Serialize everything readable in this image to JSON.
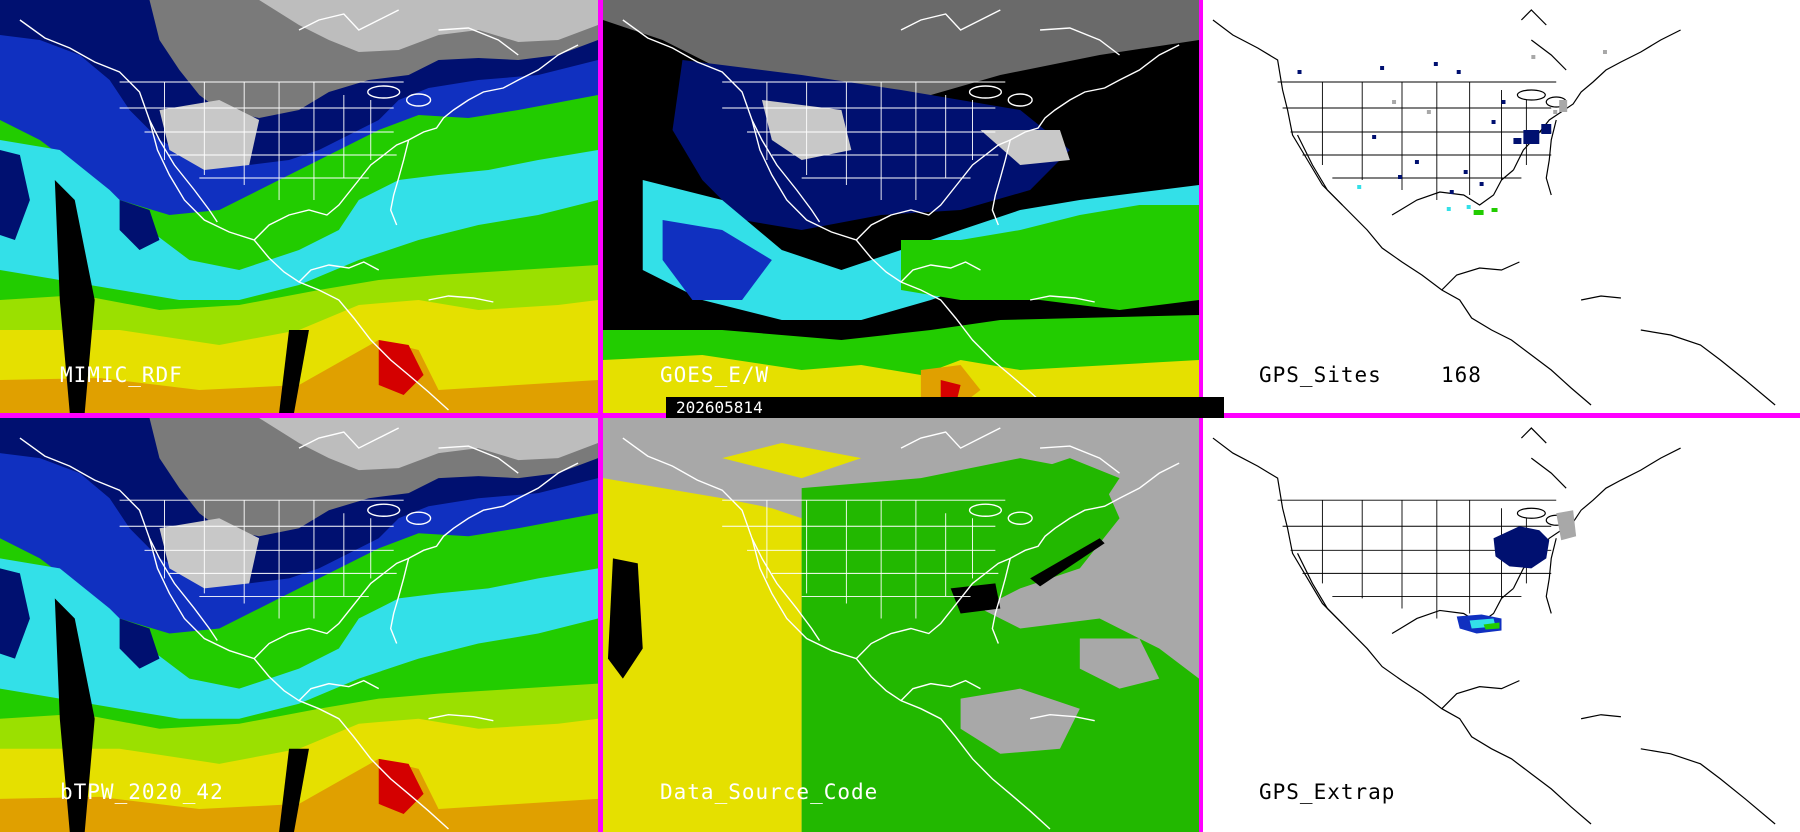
{
  "panels": [
    {
      "id": "mimic",
      "label": "MIMIC_RDF",
      "style": "tpw"
    },
    {
      "id": "goes",
      "label": "GOES_E/W",
      "style": "goes"
    },
    {
      "id": "gps",
      "label": "GPS_Sites",
      "count": "168",
      "style": "gps"
    },
    {
      "id": "btpw",
      "label": "bTPW_2020_42",
      "style": "tpw"
    },
    {
      "id": "dsc",
      "label": "Data_Source_Code",
      "style": "dsc"
    },
    {
      "id": "extrap",
      "label": "GPS_Extrap",
      "style": "gps"
    }
  ],
  "timestamp": "202605814",
  "colors": {
    "border": "#ff00ff",
    "red": "#d40000",
    "yellow": "#e5e000",
    "green": "#22cc00",
    "cyan": "#33e0e8",
    "blue": "#1030c0",
    "navy": "#001070",
    "gray": "#a8a8a8"
  }
}
